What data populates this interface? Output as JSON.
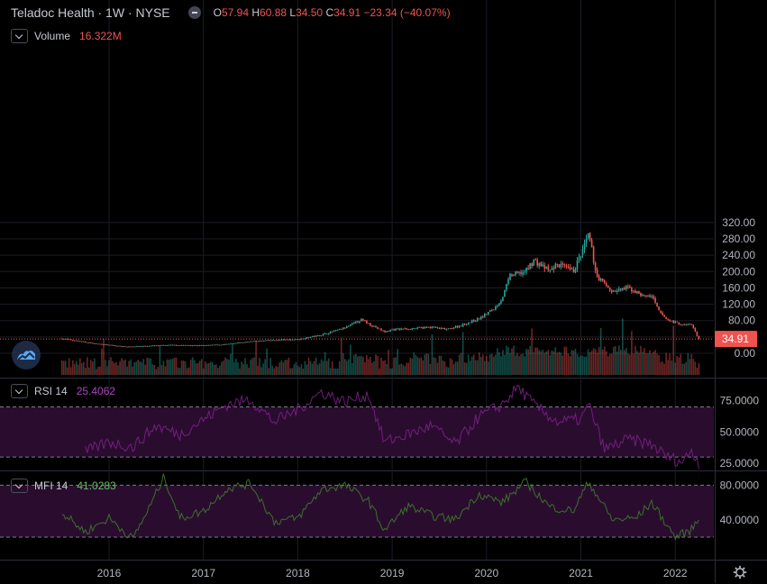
{
  "header": {
    "symbol": "Teladoc Health · 1W · NYSE",
    "o_label": "O",
    "o_value": "57.94",
    "h_label": "H",
    "h_value": "60.88",
    "l_label": "L",
    "l_value": "34.50",
    "c_label": "C",
    "c_value": "34.91",
    "change": "−23.34 (−40.07%)"
  },
  "volume_legend": {
    "label": "Volume",
    "value": "16.322M"
  },
  "rsi_legend": {
    "label": "RSI 14",
    "value": "25.4062"
  },
  "mfi_legend": {
    "label": "MFI 14",
    "value": "41.0283"
  },
  "colors": {
    "up": "#26a69a",
    "down": "#ef5350",
    "rsi": "#9c27b0",
    "mfi": "#4caf50",
    "band": "#2a0d2e"
  },
  "chart_data": [
    {
      "type": "candlestick",
      "x_ticks": [
        "2016",
        "2017",
        "2018",
        "2019",
        "2020",
        "2021",
        "2022"
      ],
      "y_ticks": [
        "320.00",
        "280.00",
        "240.00",
        "200.00",
        "160.00",
        "120.00",
        "80.00",
        "40.00",
        "0.00"
      ],
      "ylim": [
        0,
        320
      ],
      "last_price_label": "34.91",
      "price_path": [
        [
          "2015-07",
          36
        ],
        [
          "2015-09",
          30
        ],
        [
          "2015-11",
          24
        ],
        [
          "2016-01",
          20
        ],
        [
          "2016-03",
          16
        ],
        [
          "2016-06",
          18
        ],
        [
          "2016-09",
          20
        ],
        [
          "2017-01",
          19
        ],
        [
          "2017-04",
          22
        ],
        [
          "2017-07",
          29
        ],
        [
          "2017-10",
          32
        ],
        [
          "2018-01",
          34
        ],
        [
          "2018-04",
          45
        ],
        [
          "2018-07",
          62
        ],
        [
          "2018-09",
          82
        ],
        [
          "2018-10",
          73
        ],
        [
          "2018-12",
          52
        ],
        [
          "2019-01",
          58
        ],
        [
          "2019-03",
          60
        ],
        [
          "2019-06",
          64
        ],
        [
          "2019-08",
          58
        ],
        [
          "2019-10",
          70
        ],
        [
          "2019-12",
          84
        ],
        [
          "2020-02",
          110
        ],
        [
          "2020-03",
          135
        ],
        [
          "2020-04",
          190
        ],
        [
          "2020-06",
          200
        ],
        [
          "2020-07",
          228
        ],
        [
          "2020-09",
          200
        ],
        [
          "2020-10",
          218
        ],
        [
          "2020-12",
          200
        ],
        [
          "2021-01",
          240
        ],
        [
          "2021-02",
          290
        ],
        [
          "2021-03",
          190
        ],
        [
          "2021-05",
          150
        ],
        [
          "2021-07",
          160
        ],
        [
          "2021-09",
          140
        ],
        [
          "2021-10",
          140
        ],
        [
          "2021-11",
          100
        ],
        [
          "2021-12",
          82
        ],
        [
          "2022-01",
          76
        ],
        [
          "2022-02",
          68
        ],
        [
          "2022-03",
          72
        ],
        [
          "2022-04",
          34.91
        ]
      ]
    },
    {
      "type": "bar",
      "name": "Volume",
      "value_label": "16.322M"
    },
    {
      "type": "line",
      "name": "RSI 14",
      "y_ticks": [
        "75.0000",
        "50.0000",
        "25.0000"
      ],
      "ylim": [
        20,
        92
      ],
      "bands": [
        70,
        30
      ],
      "current": 25.4062,
      "path": [
        [
          "2015-10",
          34
        ],
        [
          "2016-01",
          42
        ],
        [
          "2016-04",
          38
        ],
        [
          "2016-07",
          55
        ],
        [
          "2016-10",
          48
        ],
        [
          "2017-01",
          60
        ],
        [
          "2017-04",
          72
        ],
        [
          "2017-07",
          76
        ],
        [
          "2017-10",
          58
        ],
        [
          "2018-01",
          68
        ],
        [
          "2018-04",
          82
        ],
        [
          "2018-07",
          74
        ],
        [
          "2018-10",
          80
        ],
        [
          "2018-12",
          42
        ],
        [
          "2019-03",
          48
        ],
        [
          "2019-06",
          55
        ],
        [
          "2019-09",
          40
        ],
        [
          "2019-12",
          62
        ],
        [
          "2020-03",
          72
        ],
        [
          "2020-05",
          86
        ],
        [
          "2020-07",
          72
        ],
        [
          "2020-10",
          58
        ],
        [
          "2021-01",
          60
        ],
        [
          "2021-02",
          72
        ],
        [
          "2021-04",
          36
        ],
        [
          "2021-07",
          44
        ],
        [
          "2021-10",
          40
        ],
        [
          "2021-12",
          30
        ],
        [
          "2022-02",
          26
        ],
        [
          "2022-03",
          36
        ],
        [
          "2022-04",
          25.4
        ]
      ]
    },
    {
      "type": "line",
      "name": "MFI 14",
      "y_ticks": [
        "80.0000",
        "40.0000"
      ],
      "ylim": [
        -5,
        95
      ],
      "bands": [
        80,
        20
      ],
      "current": 41.0283,
      "path": [
        [
          "2015-07",
          48
        ],
        [
          "2015-10",
          26
        ],
        [
          "2016-01",
          42
        ],
        [
          "2016-04",
          18
        ],
        [
          "2016-06",
          52
        ],
        [
          "2016-08",
          90
        ],
        [
          "2016-10",
          42
        ],
        [
          "2017-01",
          50
        ],
        [
          "2017-04",
          76
        ],
        [
          "2017-07",
          82
        ],
        [
          "2017-10",
          38
        ],
        [
          "2018-01",
          42
        ],
        [
          "2018-04",
          75
        ],
        [
          "2018-07",
          80
        ],
        [
          "2018-10",
          62
        ],
        [
          "2018-12",
          28
        ],
        [
          "2019-03",
          56
        ],
        [
          "2019-06",
          45
        ],
        [
          "2019-09",
          40
        ],
        [
          "2019-12",
          70
        ],
        [
          "2020-03",
          60
        ],
        [
          "2020-06",
          84
        ],
        [
          "2020-09",
          55
        ],
        [
          "2020-12",
          50
        ],
        [
          "2021-02",
          84
        ],
        [
          "2021-05",
          40
        ],
        [
          "2021-08",
          42
        ],
        [
          "2021-10",
          60
        ],
        [
          "2022-01",
          20
        ],
        [
          "2022-03",
          28
        ],
        [
          "2022-04",
          41
        ]
      ]
    }
  ]
}
